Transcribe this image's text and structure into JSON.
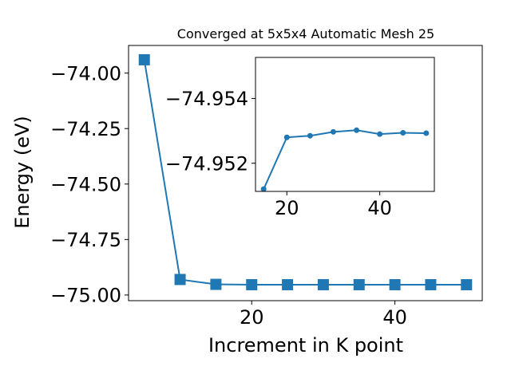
{
  "chart_data": [
    {
      "type": "line",
      "title": "Converged at 5x5x4 Automatic Mesh 25",
      "xlabel": "Increment in K point",
      "ylabel": "Energy (eV)",
      "xlim": [
        2.8,
        52.2
      ],
      "ylim": [
        -75.0255,
        -73.8755
      ],
      "xticks": [
        20,
        40
      ],
      "xtick_labels": [
        "20",
        "40"
      ],
      "yticks": [
        -74.0,
        -74.25,
        -74.5,
        -74.75,
        -75.0
      ],
      "ytick_labels": [
        "−74.00",
        "−74.25",
        "−74.50",
        "−74.75",
        "−75.00"
      ],
      "grid": false,
      "marker": "square",
      "color": "#1f77b4",
      "series": [
        {
          "x": [
            5,
            10,
            15,
            20,
            25,
            30,
            35,
            40,
            45,
            50
          ],
          "values": [
            -73.94,
            -74.93,
            -74.952,
            -74.9535,
            -74.9535,
            -74.9535,
            -74.9535,
            -74.9535,
            -74.9535,
            -74.9535
          ]
        }
      ]
    },
    {
      "type": "line",
      "title": "",
      "xlabel": "",
      "ylabel": "",
      "xlim": [
        13.25,
        51.75
      ],
      "ylim": [
        -74.95113,
        -74.95527
      ],
      "xticks": [
        20,
        40
      ],
      "xtick_labels": [
        "20",
        "40"
      ],
      "yticks": [
        -74.954,
        -74.952
      ],
      "ytick_labels": [
        "−74.954",
        "−74.952"
      ],
      "grid": false,
      "marker": "circle",
      "color": "#1f77b4",
      "series": [
        {
          "x": [
            15,
            20,
            25,
            30,
            35,
            40,
            45,
            50
          ],
          "values": [
            -74.9512,
            -74.9528,
            -74.95285,
            -74.95297,
            -74.95302,
            -74.9529,
            -74.95294,
            -74.95293
          ]
        }
      ]
    }
  ]
}
